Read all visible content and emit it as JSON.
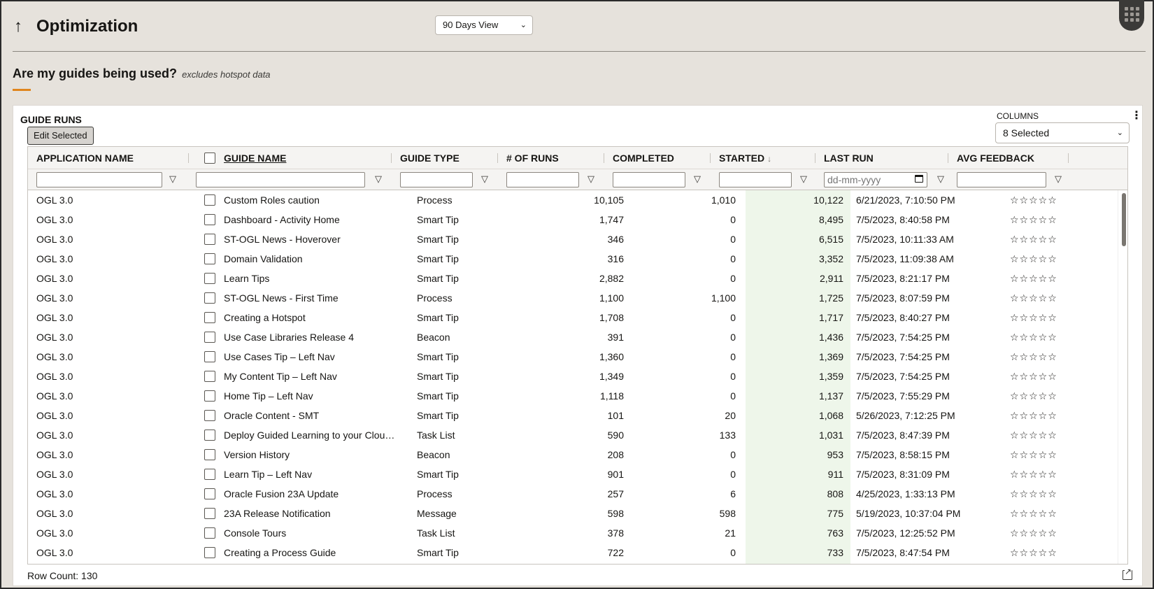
{
  "header": {
    "back_icon": "up-arrow-icon",
    "title": "Optimization",
    "view_select": "90 Days View"
  },
  "section": {
    "question": "Are my guides being used?",
    "note": "excludes hotspot data",
    "accent_color": "#e0851d"
  },
  "panel": {
    "title": "GUIDE RUNS",
    "edit_button": "Edit Selected",
    "columns_label": "COLUMNS",
    "columns_value": "8 Selected",
    "row_count": "Row Count: 130"
  },
  "table": {
    "headers": {
      "app": "APPLICATION NAME",
      "guide": "GUIDE NAME",
      "type": "GUIDE TYPE",
      "runs": "# OF RUNS",
      "completed": "COMPLETED",
      "started": "STARTED",
      "last_run": "LAST RUN",
      "feedback": "AVG FEEDBACK"
    },
    "date_placeholder": "dd-mm-yyyy",
    "rows": [
      {
        "app": "OGL 3.0",
        "name": "Custom Roles caution",
        "type": "Process",
        "runs": "10,105",
        "completed": "1,010",
        "started": "10,122",
        "last": "6/21/2023, 7:10:50 PM",
        "fb": "☆☆☆☆☆"
      },
      {
        "app": "OGL 3.0",
        "name": "Dashboard - Activity Home",
        "type": "Smart Tip",
        "runs": "1,747",
        "completed": "0",
        "started": "8,495",
        "last": "7/5/2023, 8:40:58 PM",
        "fb": "☆☆☆☆☆"
      },
      {
        "app": "OGL 3.0",
        "name": "ST-OGL News - Hoverover",
        "type": "Smart Tip",
        "runs": "346",
        "completed": "0",
        "started": "6,515",
        "last": "7/5/2023, 10:11:33 AM",
        "fb": "☆☆☆☆☆"
      },
      {
        "app": "OGL 3.0",
        "name": "Domain Validation",
        "type": "Smart Tip",
        "runs": "316",
        "completed": "0",
        "started": "3,352",
        "last": "7/5/2023, 11:09:38 AM",
        "fb": "☆☆☆☆☆"
      },
      {
        "app": "OGL 3.0",
        "name": "Learn Tips",
        "type": "Smart Tip",
        "runs": "2,882",
        "completed": "0",
        "started": "2,911",
        "last": "7/5/2023, 8:21:17 PM",
        "fb": "☆☆☆☆☆"
      },
      {
        "app": "OGL 3.0",
        "name": "ST-OGL News - First Time",
        "type": "Process",
        "runs": "1,100",
        "completed": "1,100",
        "started": "1,725",
        "last": "7/5/2023, 8:07:59 PM",
        "fb": "☆☆☆☆☆"
      },
      {
        "app": "OGL 3.0",
        "name": "Creating a Hotspot",
        "type": "Smart Tip",
        "runs": "1,708",
        "completed": "0",
        "started": "1,717",
        "last": "7/5/2023, 8:40:27 PM",
        "fb": "☆☆☆☆☆"
      },
      {
        "app": "OGL 3.0",
        "name": "Use Case Libraries Release 4",
        "type": "Beacon",
        "runs": "391",
        "completed": "0",
        "started": "1,436",
        "last": "7/5/2023, 7:54:25 PM",
        "fb": "☆☆☆☆☆"
      },
      {
        "app": "OGL 3.0",
        "name": "Use Cases Tip – Left Nav",
        "type": "Smart Tip",
        "runs": "1,360",
        "completed": "0",
        "started": "1,369",
        "last": "7/5/2023, 7:54:25 PM",
        "fb": "☆☆☆☆☆"
      },
      {
        "app": "OGL 3.0",
        "name": "My Content Tip – Left Nav",
        "type": "Smart Tip",
        "runs": "1,349",
        "completed": "0",
        "started": "1,359",
        "last": "7/5/2023, 7:54:25 PM",
        "fb": "☆☆☆☆☆"
      },
      {
        "app": "OGL 3.0",
        "name": "Home Tip – Left Nav",
        "type": "Smart Tip",
        "runs": "1,118",
        "completed": "0",
        "started": "1,137",
        "last": "7/5/2023, 7:55:29 PM",
        "fb": "☆☆☆☆☆"
      },
      {
        "app": "OGL 3.0",
        "name": "Oracle Content - SMT",
        "type": "Smart Tip",
        "runs": "101",
        "completed": "20",
        "started": "1,068",
        "last": "5/26/2023, 7:12:25 PM",
        "fb": "☆☆☆☆☆"
      },
      {
        "app": "OGL 3.0",
        "name": "Deploy Guided Learning to your Clou…",
        "type": "Task List",
        "runs": "590",
        "completed": "133",
        "started": "1,031",
        "last": "7/5/2023, 8:47:39 PM",
        "fb": "☆☆☆☆☆"
      },
      {
        "app": "OGL 3.0",
        "name": "Version History",
        "type": "Beacon",
        "runs": "208",
        "completed": "0",
        "started": "953",
        "last": "7/5/2023, 8:58:15 PM",
        "fb": "☆☆☆☆☆"
      },
      {
        "app": "OGL 3.0",
        "name": "Learn Tip – Left Nav",
        "type": "Smart Tip",
        "runs": "901",
        "completed": "0",
        "started": "911",
        "last": "7/5/2023, 8:31:09 PM",
        "fb": "☆☆☆☆☆"
      },
      {
        "app": "OGL 3.0",
        "name": "Oracle Fusion 23A Update",
        "type": "Process",
        "runs": "257",
        "completed": "6",
        "started": "808",
        "last": "4/25/2023, 1:33:13 PM",
        "fb": "☆☆☆☆☆"
      },
      {
        "app": "OGL 3.0",
        "name": "23A Release Notification",
        "type": "Message",
        "runs": "598",
        "completed": "598",
        "started": "775",
        "last": "5/19/2023, 10:37:04 PM",
        "fb": "☆☆☆☆☆"
      },
      {
        "app": "OGL 3.0",
        "name": "Console Tours",
        "type": "Task List",
        "runs": "378",
        "completed": "21",
        "started": "763",
        "last": "7/5/2023, 12:25:52 PM",
        "fb": "☆☆☆☆☆"
      },
      {
        "app": "OGL 3.0",
        "name": "Creating a Process Guide",
        "type": "Smart Tip",
        "runs": "722",
        "completed": "0",
        "started": "733",
        "last": "7/5/2023, 8:47:54 PM",
        "fb": "☆☆☆☆☆"
      }
    ]
  }
}
